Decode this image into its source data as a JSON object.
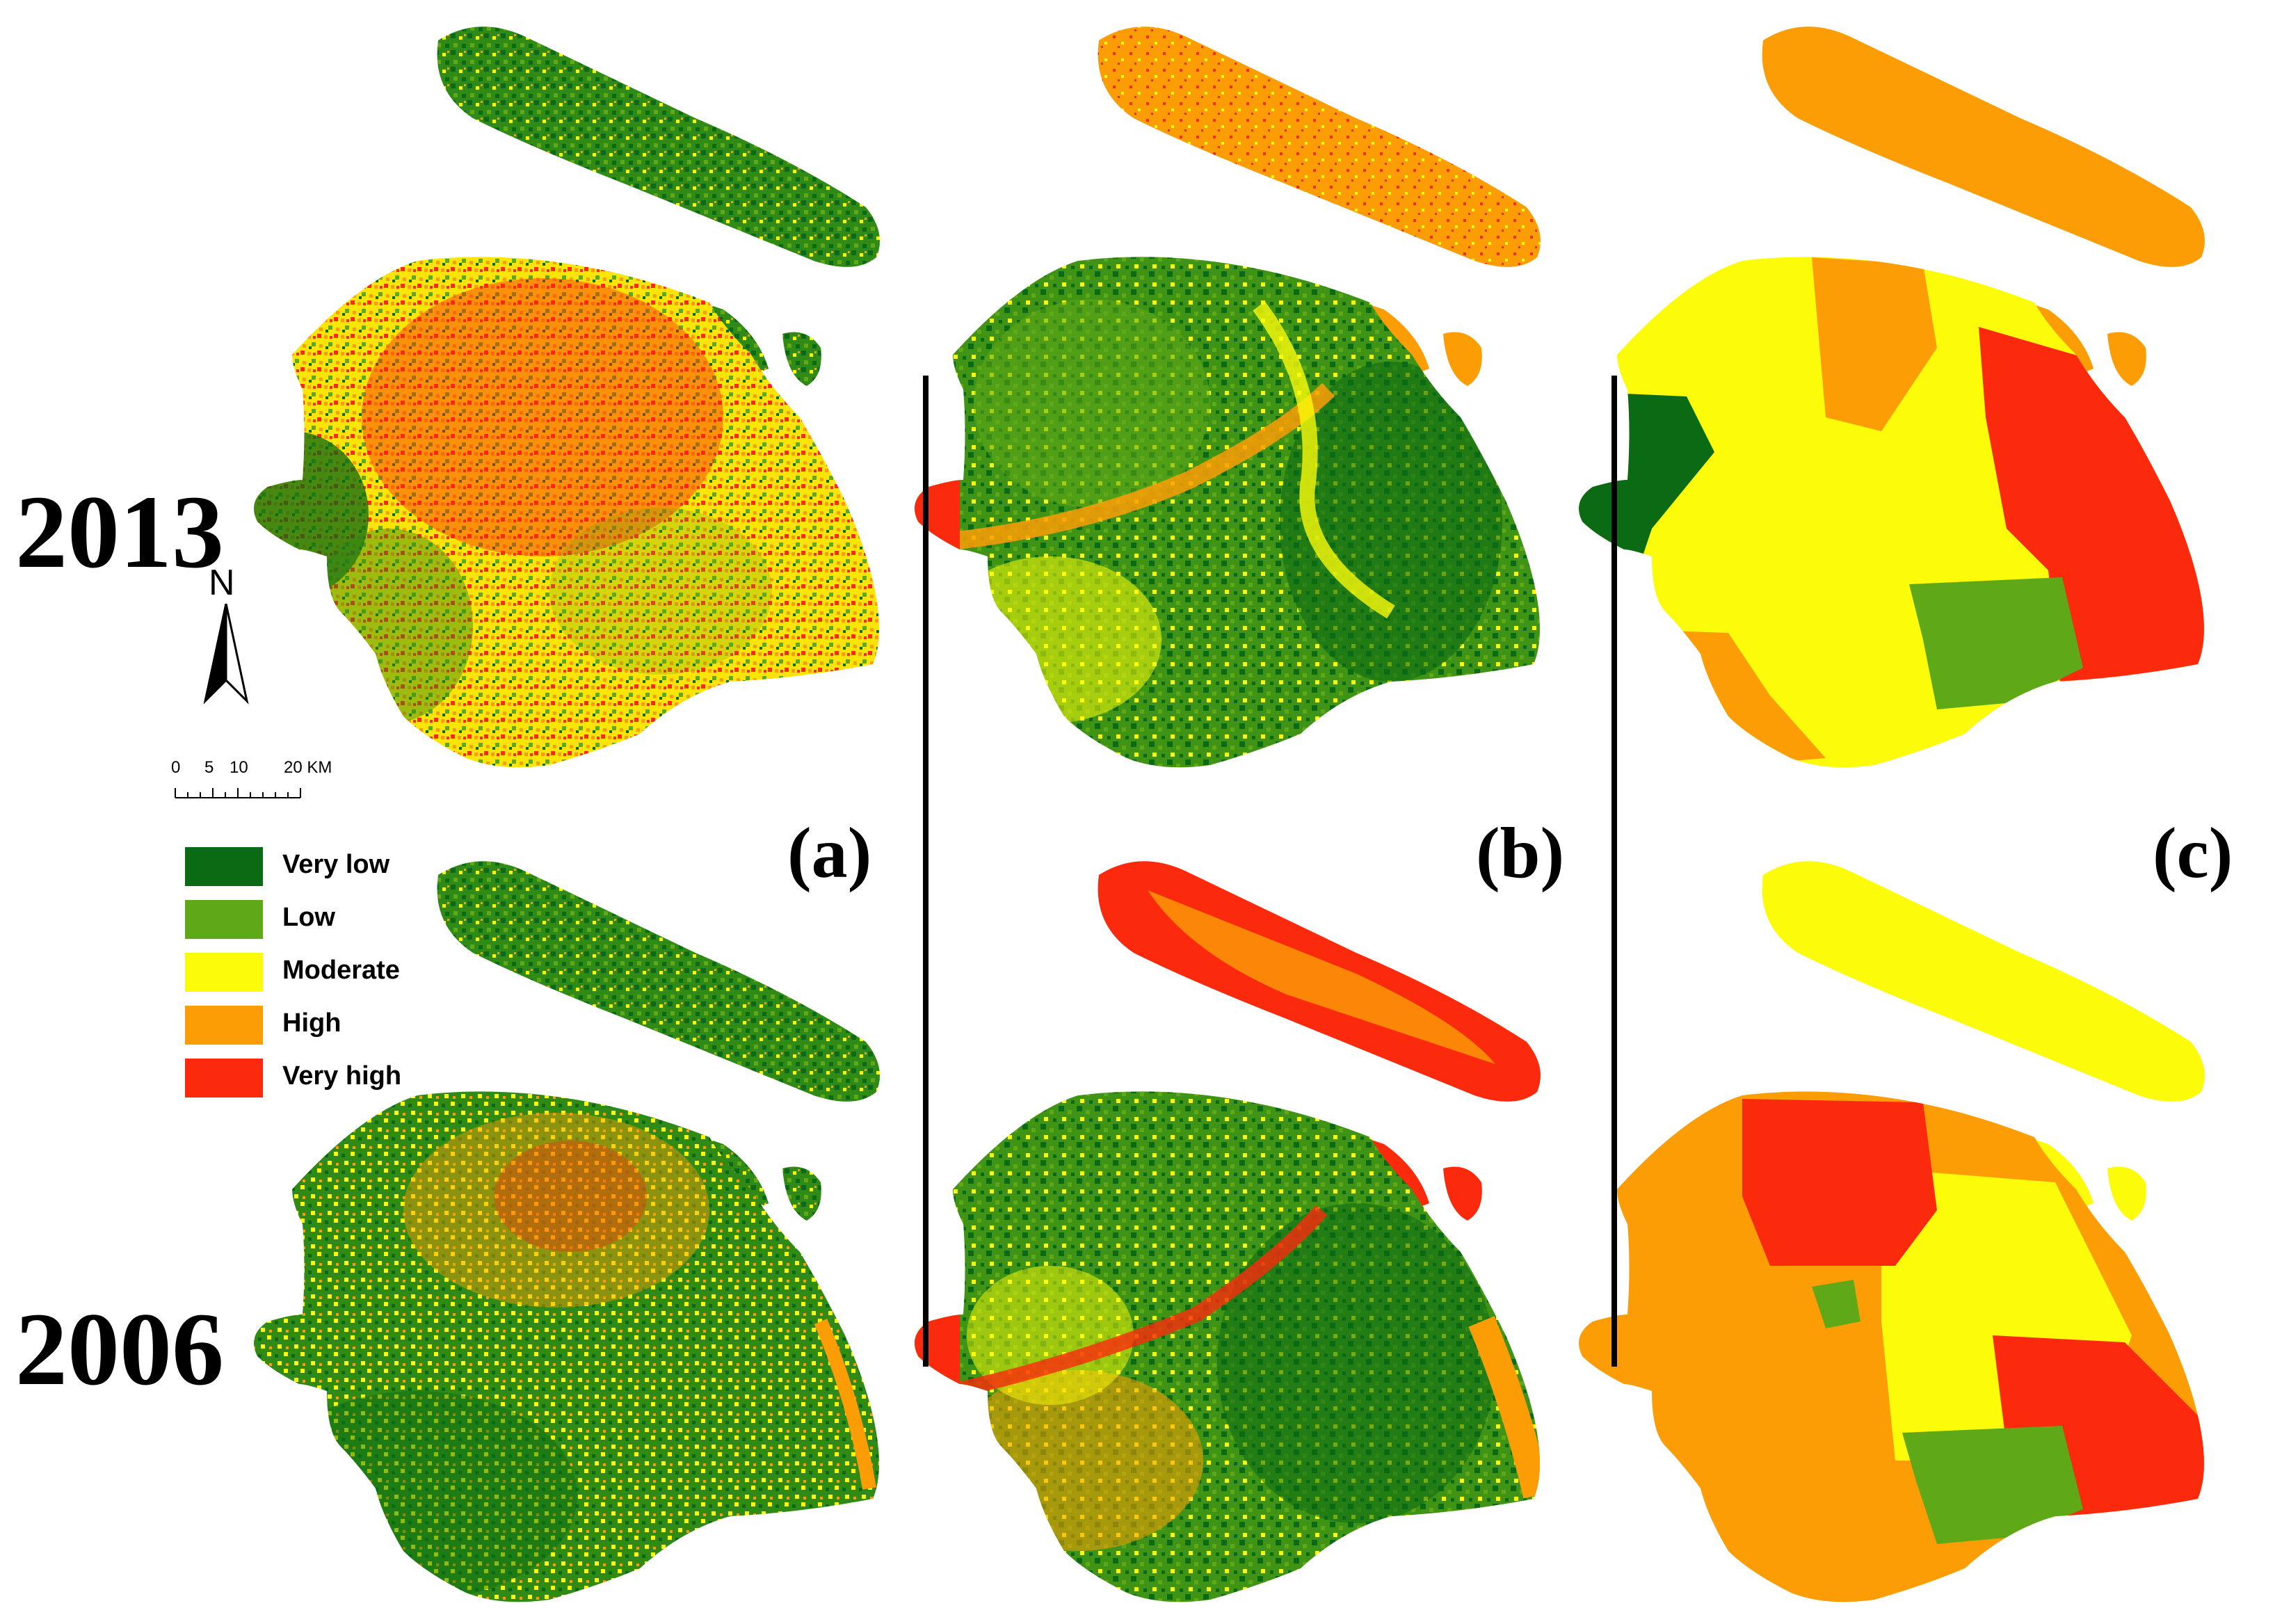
{
  "years": {
    "top": "2013",
    "bottom": "2006"
  },
  "panels": [
    {
      "id": "a",
      "label": "(a)"
    },
    {
      "id": "b",
      "label": "(b)"
    },
    {
      "id": "c",
      "label": "(c)"
    }
  ],
  "legend": {
    "items": [
      {
        "label": "Very low",
        "color": "#0b6a14"
      },
      {
        "label": "Low",
        "color": "#5fa817"
      },
      {
        "label": "Moderate",
        "color": "#fbfb0a"
      },
      {
        "label": "High",
        "color": "#fd9d06"
      },
      {
        "label": "Very high",
        "color": "#fb2a0c"
      }
    ]
  },
  "north_arrow": {
    "letter": "N"
  },
  "scale_bar": {
    "ticks": [
      "0",
      "5",
      "10",
      "20 KM"
    ]
  }
}
